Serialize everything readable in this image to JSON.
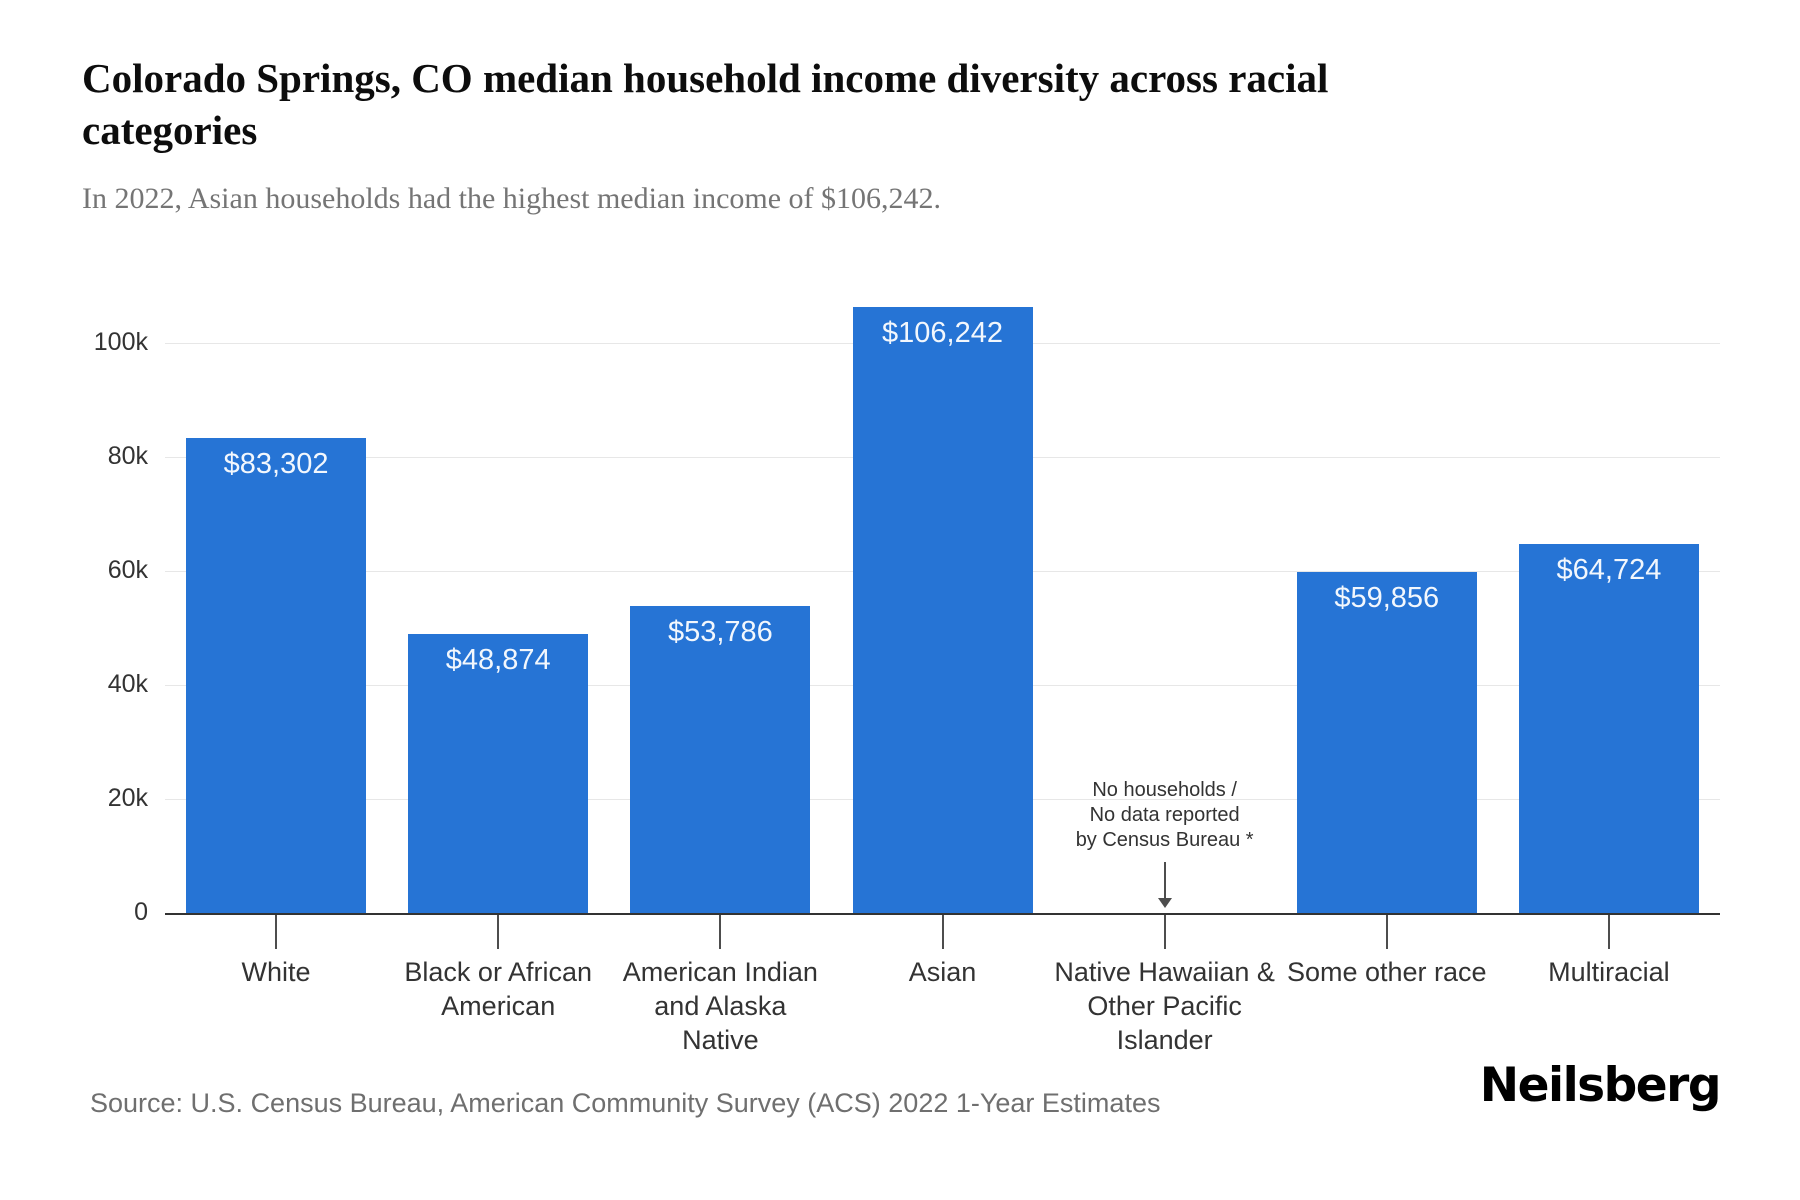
{
  "header": {
    "title": "Colorado Springs, CO median household income diversity across racial categories",
    "subtitle": "In 2022, Asian households had the highest median income of $106,242."
  },
  "chart_data": {
    "type": "bar",
    "title": "Colorado Springs, CO median household income diversity across racial categories",
    "subtitle": "In 2022, Asian households had the highest median income of $106,242.",
    "categories": [
      "White",
      "Black or African\nAmerican",
      "American Indian\nand Alaska\nNative",
      "Asian",
      "Native Hawaiian &\nOther Pacific\nIslander",
      "Some other race",
      "Multiracial"
    ],
    "values": [
      83302,
      48874,
      53786,
      106242,
      null,
      59856,
      64724
    ],
    "value_labels": [
      "$83,302",
      "$48,874",
      "$53,786",
      "$106,242",
      null,
      "$59,856",
      "$64,724"
    ],
    "no_data_note": "No households /\nNo data reported\nby Census Bureau *",
    "yticks": [
      {
        "value": 0,
        "label": "0"
      },
      {
        "value": 20000,
        "label": "20k"
      },
      {
        "value": 40000,
        "label": "40k"
      },
      {
        "value": 60000,
        "label": "60k"
      },
      {
        "value": 80000,
        "label": "80k"
      },
      {
        "value": 100000,
        "label": "100k"
      }
    ],
    "ylim": [
      0,
      110000
    ],
    "xlabel": "",
    "ylabel": "",
    "grid": true,
    "legend": false,
    "bar_color": "#2674d5",
    "value_label_color": "#f2f7fd",
    "gridline_color": "#e7e7e7",
    "axis_color": "#333333"
  },
  "footer": {
    "source": "Source: U.S. Census Bureau, American Community Survey (ACS) 2022 1-Year Estimates",
    "brand": "Neilsberg"
  }
}
